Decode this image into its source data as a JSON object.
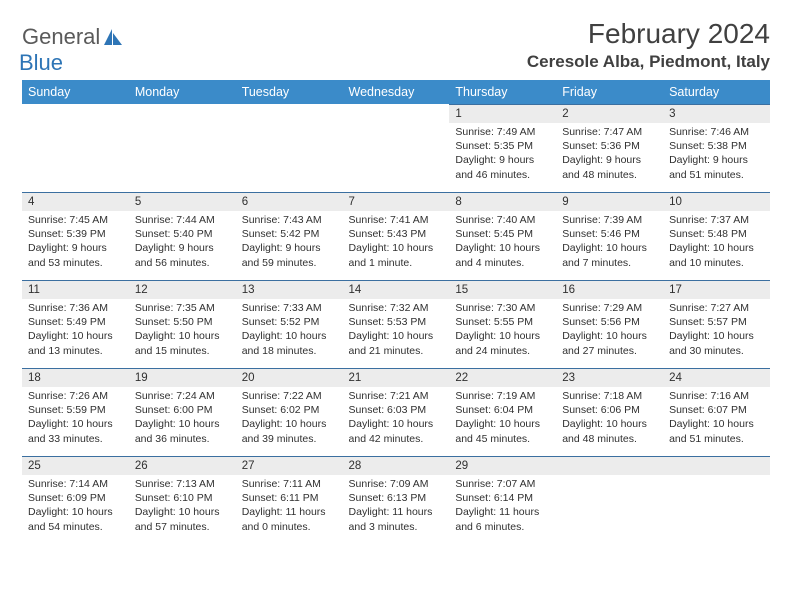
{
  "logo": {
    "text1": "General",
    "text2": "Blue"
  },
  "title": "February 2024",
  "location": "Ceresole Alba, Piedmont, Italy",
  "style": {
    "header_bg": "#3b8bc9",
    "header_fg": "#ffffff",
    "daynum_bg": "#ececec",
    "cell_border_top": "#3b6fa0",
    "title_color": "#404040",
    "text_color": "#303030",
    "logo_gray": "#5a5a5a",
    "logo_blue": "#2e75b6",
    "day_fontsize": 10.5,
    "daynum_fontsize": 11.5,
    "header_fontsize": 12.5,
    "title_fontsize": 28,
    "location_fontsize": 17
  },
  "dow": [
    "Sunday",
    "Monday",
    "Tuesday",
    "Wednesday",
    "Thursday",
    "Friday",
    "Saturday"
  ],
  "weeks": [
    [
      null,
      null,
      null,
      null,
      {
        "d": "1",
        "sr": "7:49 AM",
        "ss": "5:35 PM",
        "dl": "9 hours and 46 minutes."
      },
      {
        "d": "2",
        "sr": "7:47 AM",
        "ss": "5:36 PM",
        "dl": "9 hours and 48 minutes."
      },
      {
        "d": "3",
        "sr": "7:46 AM",
        "ss": "5:38 PM",
        "dl": "9 hours and 51 minutes."
      }
    ],
    [
      {
        "d": "4",
        "sr": "7:45 AM",
        "ss": "5:39 PM",
        "dl": "9 hours and 53 minutes."
      },
      {
        "d": "5",
        "sr": "7:44 AM",
        "ss": "5:40 PM",
        "dl": "9 hours and 56 minutes."
      },
      {
        "d": "6",
        "sr": "7:43 AM",
        "ss": "5:42 PM",
        "dl": "9 hours and 59 minutes."
      },
      {
        "d": "7",
        "sr": "7:41 AM",
        "ss": "5:43 PM",
        "dl": "10 hours and 1 minute."
      },
      {
        "d": "8",
        "sr": "7:40 AM",
        "ss": "5:45 PM",
        "dl": "10 hours and 4 minutes."
      },
      {
        "d": "9",
        "sr": "7:39 AM",
        "ss": "5:46 PM",
        "dl": "10 hours and 7 minutes."
      },
      {
        "d": "10",
        "sr": "7:37 AM",
        "ss": "5:48 PM",
        "dl": "10 hours and 10 minutes."
      }
    ],
    [
      {
        "d": "11",
        "sr": "7:36 AM",
        "ss": "5:49 PM",
        "dl": "10 hours and 13 minutes."
      },
      {
        "d": "12",
        "sr": "7:35 AM",
        "ss": "5:50 PM",
        "dl": "10 hours and 15 minutes."
      },
      {
        "d": "13",
        "sr": "7:33 AM",
        "ss": "5:52 PM",
        "dl": "10 hours and 18 minutes."
      },
      {
        "d": "14",
        "sr": "7:32 AM",
        "ss": "5:53 PM",
        "dl": "10 hours and 21 minutes."
      },
      {
        "d": "15",
        "sr": "7:30 AM",
        "ss": "5:55 PM",
        "dl": "10 hours and 24 minutes."
      },
      {
        "d": "16",
        "sr": "7:29 AM",
        "ss": "5:56 PM",
        "dl": "10 hours and 27 minutes."
      },
      {
        "d": "17",
        "sr": "7:27 AM",
        "ss": "5:57 PM",
        "dl": "10 hours and 30 minutes."
      }
    ],
    [
      {
        "d": "18",
        "sr": "7:26 AM",
        "ss": "5:59 PM",
        "dl": "10 hours and 33 minutes."
      },
      {
        "d": "19",
        "sr": "7:24 AM",
        "ss": "6:00 PM",
        "dl": "10 hours and 36 minutes."
      },
      {
        "d": "20",
        "sr": "7:22 AM",
        "ss": "6:02 PM",
        "dl": "10 hours and 39 minutes."
      },
      {
        "d": "21",
        "sr": "7:21 AM",
        "ss": "6:03 PM",
        "dl": "10 hours and 42 minutes."
      },
      {
        "d": "22",
        "sr": "7:19 AM",
        "ss": "6:04 PM",
        "dl": "10 hours and 45 minutes."
      },
      {
        "d": "23",
        "sr": "7:18 AM",
        "ss": "6:06 PM",
        "dl": "10 hours and 48 minutes."
      },
      {
        "d": "24",
        "sr": "7:16 AM",
        "ss": "6:07 PM",
        "dl": "10 hours and 51 minutes."
      }
    ],
    [
      {
        "d": "25",
        "sr": "7:14 AM",
        "ss": "6:09 PM",
        "dl": "10 hours and 54 minutes."
      },
      {
        "d": "26",
        "sr": "7:13 AM",
        "ss": "6:10 PM",
        "dl": "10 hours and 57 minutes."
      },
      {
        "d": "27",
        "sr": "7:11 AM",
        "ss": "6:11 PM",
        "dl": "11 hours and 0 minutes."
      },
      {
        "d": "28",
        "sr": "7:09 AM",
        "ss": "6:13 PM",
        "dl": "11 hours and 3 minutes."
      },
      {
        "d": "29",
        "sr": "7:07 AM",
        "ss": "6:14 PM",
        "dl": "11 hours and 6 minutes."
      },
      null,
      null
    ]
  ]
}
